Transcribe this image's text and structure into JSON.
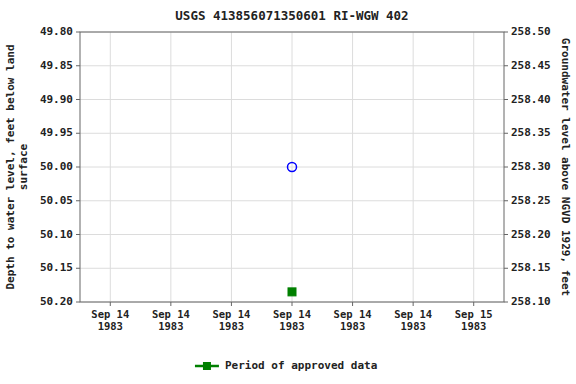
{
  "chart_data": {
    "type": "scatter",
    "title": "USGS 413856071350601 RI-WGW  402",
    "y_label": "Depth to water level, feet below land\nsurface",
    "y2_label": "Groundwater level above NGVD 1929, feet",
    "categories": [
      "Sep 14\n1983",
      "Sep 14\n1983",
      "Sep 14\n1983",
      "Sep 14\n1983",
      "Sep 14\n1983",
      "Sep 14\n1983",
      "Sep 15\n1983"
    ],
    "series": [
      {
        "color": "#0000ff",
        "marker": "circle",
        "values": [
          null,
          null,
          null,
          50.0,
          null,
          null,
          null
        ]
      },
      {
        "name": "Period of approved data",
        "color": "#008000",
        "marker": "square",
        "values": [
          null,
          null,
          null,
          50.185,
          null,
          null,
          null
        ]
      }
    ],
    "ylim": [
      50.2,
      49.8
    ],
    "yticks": [
      {
        "value": 49.8,
        "label": "49.80"
      },
      {
        "value": 49.85,
        "label": "49.85"
      },
      {
        "value": 49.9,
        "label": "49.90"
      },
      {
        "value": 49.95,
        "label": "49.95"
      },
      {
        "value": 50.0,
        "label": "50.00"
      },
      {
        "value": 50.05,
        "label": "50.05"
      },
      {
        "value": 50.1,
        "label": "50.10"
      },
      {
        "value": 50.15,
        "label": "50.15"
      },
      {
        "value": 50.2,
        "label": "50.20"
      }
    ],
    "y2lim": [
      258.1,
      258.5
    ],
    "y2ticks": [
      {
        "value": 258.1,
        "label": "258.10"
      },
      {
        "value": 258.15,
        "label": "258.15"
      },
      {
        "value": 258.2,
        "label": "258.20"
      },
      {
        "value": 258.25,
        "label": "258.25"
      },
      {
        "value": 258.3,
        "label": "258.30"
      },
      {
        "value": 258.35,
        "label": "258.35"
      },
      {
        "value": 258.4,
        "label": "258.40"
      },
      {
        "value": 258.45,
        "label": "258.45"
      },
      {
        "value": 258.5,
        "label": "258.50"
      }
    ],
    "grid": true,
    "legend": "bottom"
  }
}
